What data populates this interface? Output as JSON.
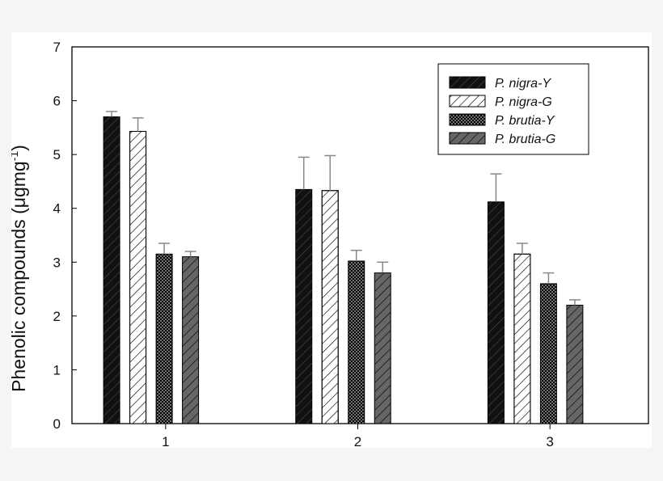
{
  "chart_data": {
    "type": "bar",
    "title": "",
    "xlabel": "",
    "ylabel": "Phenolic compounds (μgmg⁻¹)",
    "ylabel_parts": {
      "main": "Phenolic compounds (",
      "unit": "μgmg",
      "sup": "-1",
      "close": ")"
    },
    "ylim": [
      0,
      7
    ],
    "yticks": [
      0,
      1,
      2,
      3,
      4,
      5,
      6,
      7
    ],
    "categories": [
      "1",
      "2",
      "3"
    ],
    "grid": false,
    "legend": "top-right",
    "series": [
      {
        "name": "P. nigra-Y",
        "pattern": "solid-black",
        "values": [
          5.7,
          4.35,
          4.12
        ],
        "errors": [
          0.1,
          0.6,
          0.52
        ]
      },
      {
        "name": "P. nigra-G",
        "pattern": "white-hatch",
        "values": [
          5.43,
          4.33,
          3.15
        ],
        "errors": [
          0.25,
          0.65,
          0.2
        ]
      },
      {
        "name": "P. brutia-Y",
        "pattern": "dark-stipple",
        "values": [
          3.15,
          3.02,
          2.6
        ],
        "errors": [
          0.2,
          0.2,
          0.2
        ]
      },
      {
        "name": "P. brutia-G",
        "pattern": "gray-hatch",
        "values": [
          3.1,
          2.8,
          2.2
        ],
        "errors": [
          0.1,
          0.2,
          0.1
        ]
      }
    ],
    "colors": {
      "axis": "#000000",
      "error_bar": "#888888",
      "bar_black": "#111111",
      "bar_gray": "#666666"
    }
  }
}
